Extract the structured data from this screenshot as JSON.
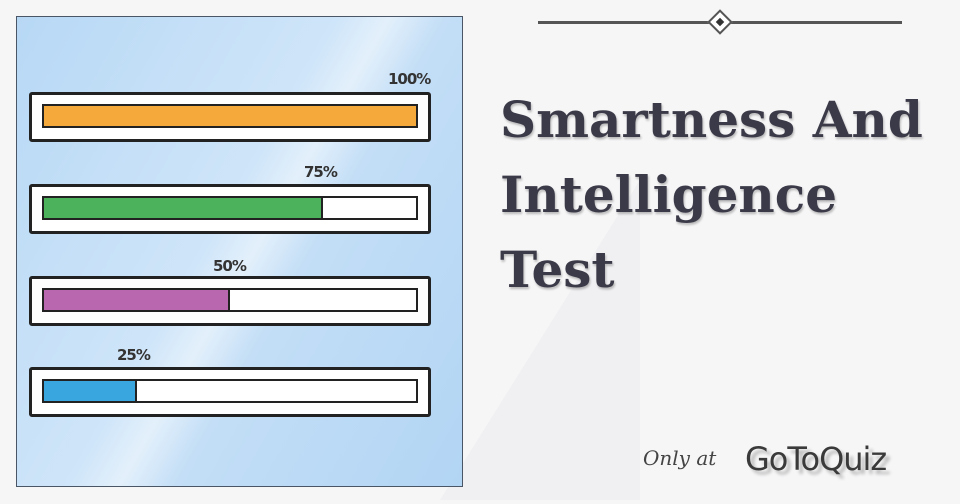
{
  "title": "Smartness And Intelligence Test",
  "title_lines": [
    "Smartness And",
    "Intelligence",
    "Test"
  ],
  "branding": {
    "prefix": "Only at",
    "name": "GoToQuiz"
  },
  "progress_bars": [
    {
      "label": "100%",
      "value": 100,
      "color": "#f6a93b"
    },
    {
      "label": "75%",
      "value": 75,
      "color": "#4cb25c"
    },
    {
      "label": "50%",
      "value": 50,
      "color": "#b967ae"
    },
    {
      "label": "25%",
      "value": 25,
      "color": "#3aa6e0"
    }
  ]
}
